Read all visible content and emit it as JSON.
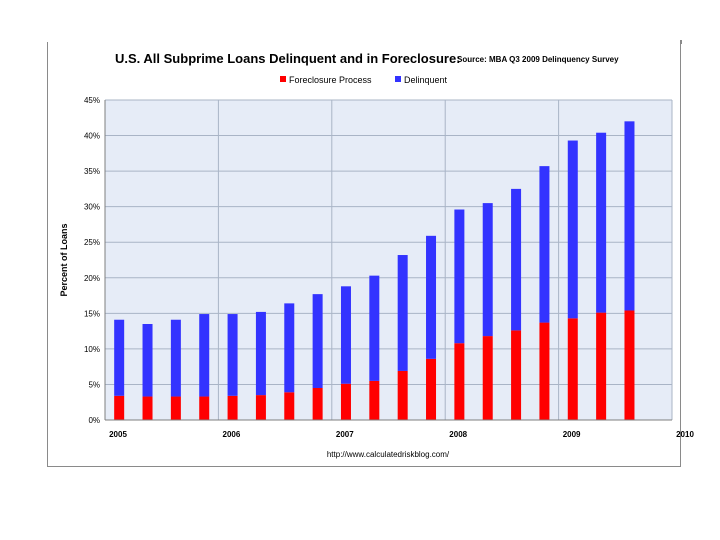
{
  "chart_data": {
    "type": "bar",
    "stacked": true,
    "title": "U.S. All Subprime Loans Delinquent and in Foreclosure:",
    "subtitle": "Source: MBA Q3 2009 Delinquency Survey",
    "xlabel": "",
    "ylabel": "Percent of Loans",
    "ylim": [
      0,
      45
    ],
    "xlim": [
      2005,
      2010
    ],
    "y_ticks": [
      "0%",
      "5%",
      "10%",
      "15%",
      "20%",
      "25%",
      "30%",
      "35%",
      "40%",
      "45%"
    ],
    "x_ticks": [
      "2005",
      "2006",
      "2007",
      "2008",
      "2009",
      "2010"
    ],
    "legend_position": "top-center",
    "grid": true,
    "source_note": "http://www.calculatedriskblog.com/",
    "categories": [
      "2005 Q1",
      "2005 Q2",
      "2005 Q3",
      "2005 Q4",
      "2006 Q1",
      "2006 Q2",
      "2006 Q3",
      "2006 Q4",
      "2007 Q1",
      "2007 Q2",
      "2007 Q3",
      "2007 Q4",
      "2008 Q1",
      "2008 Q2",
      "2008 Q3",
      "2008 Q4",
      "2009 Q1",
      "2009 Q2",
      "2009 Q3"
    ],
    "series": [
      {
        "name": "Foreclosure Process",
        "color": "#ff0000",
        "values": [
          3.4,
          3.3,
          3.3,
          3.3,
          3.4,
          3.5,
          3.9,
          4.5,
          5.1,
          5.5,
          6.9,
          8.6,
          10.8,
          11.8,
          12.6,
          13.7,
          14.3,
          15.1,
          15.4
        ]
      },
      {
        "name": "Delinquent",
        "color": "#3333ff",
        "values": [
          10.7,
          10.2,
          10.8,
          11.6,
          11.5,
          11.7,
          12.5,
          13.2,
          13.7,
          14.8,
          16.3,
          17.3,
          18.8,
          18.7,
          19.9,
          22.0,
          25.0,
          25.3,
          26.6
        ]
      }
    ],
    "colors": {
      "plot_background": "#e6ecf7",
      "gridline": "#a9b4c6",
      "axis": "#7f7f7f"
    }
  }
}
